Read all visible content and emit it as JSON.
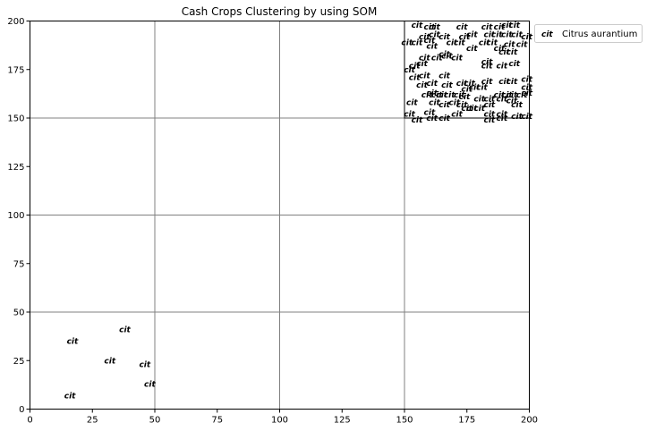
{
  "chart_data": {
    "type": "scatter",
    "title": "Cash Crops Clustering by using SOM",
    "xlabel": "",
    "ylabel": "",
    "xlim": [
      0,
      200
    ],
    "ylim": [
      0,
      200
    ],
    "xticks": [
      0,
      25,
      50,
      75,
      100,
      125,
      150,
      175,
      200
    ],
    "yticks": [
      0,
      25,
      50,
      75,
      100,
      125,
      150,
      175,
      200
    ],
    "grid": {
      "major_lines_every": 50,
      "color": "#808080"
    },
    "cluster_box": {
      "x": [
        150,
        200
      ],
      "y": [
        150,
        200
      ]
    },
    "legend": {
      "placement": "outside-top-right",
      "marker": "cit",
      "label": "Citrus aurantium"
    },
    "series": [
      {
        "name": "Citrus aurantium",
        "marker_text": "cit",
        "points": [
          [
            16,
            7
          ],
          [
            17,
            35
          ],
          [
            32,
            25
          ],
          [
            38,
            41
          ],
          [
            46,
            23
          ],
          [
            48,
            13
          ],
          [
            155,
            198
          ],
          [
            160,
            197
          ],
          [
            162,
            197
          ],
          [
            173,
            197
          ],
          [
            183,
            197
          ],
          [
            188,
            197
          ],
          [
            191,
            198
          ],
          [
            194,
            198
          ],
          [
            158,
            192
          ],
          [
            162,
            193
          ],
          [
            166,
            192
          ],
          [
            177,
            193
          ],
          [
            174,
            192
          ],
          [
            184,
            193
          ],
          [
            187,
            193
          ],
          [
            191,
            193
          ],
          [
            195,
            193
          ],
          [
            199,
            192
          ],
          [
            151,
            189
          ],
          [
            155,
            189
          ],
          [
            160,
            190
          ],
          [
            161,
            187
          ],
          [
            169,
            189
          ],
          [
            172,
            189
          ],
          [
            177,
            186
          ],
          [
            182,
            189
          ],
          [
            185,
            189
          ],
          [
            192,
            188
          ],
          [
            197,
            188
          ],
          [
            166,
            183
          ],
          [
            171,
            181
          ],
          [
            158,
            181
          ],
          [
            163,
            181
          ],
          [
            167,
            182
          ],
          [
            188,
            186
          ],
          [
            190,
            184
          ],
          [
            193,
            184
          ],
          [
            154,
            177
          ],
          [
            152,
            175
          ],
          [
            157,
            178
          ],
          [
            183,
            179
          ],
          [
            183,
            177
          ],
          [
            189,
            177
          ],
          [
            194,
            178
          ],
          [
            154,
            171
          ],
          [
            158,
            172
          ],
          [
            161,
            168
          ],
          [
            166,
            172
          ],
          [
            157,
            167
          ],
          [
            167,
            167
          ],
          [
            173,
            168
          ],
          [
            176,
            168
          ],
          [
            175,
            165
          ],
          [
            178,
            166
          ],
          [
            181,
            166
          ],
          [
            183,
            169
          ],
          [
            190,
            169
          ],
          [
            193,
            169
          ],
          [
            199,
            170
          ],
          [
            199,
            166
          ],
          [
            159,
            162
          ],
          [
            161,
            163
          ],
          [
            163,
            162
          ],
          [
            165,
            162
          ],
          [
            168,
            162
          ],
          [
            172,
            162
          ],
          [
            174,
            161
          ],
          [
            180,
            160
          ],
          [
            184,
            160
          ],
          [
            188,
            162
          ],
          [
            191,
            162
          ],
          [
            193,
            162
          ],
          [
            197,
            162
          ],
          [
            199,
            163
          ],
          [
            153,
            158
          ],
          [
            162,
            158
          ],
          [
            166,
            157
          ],
          [
            170,
            158
          ],
          [
            173,
            157
          ],
          [
            177,
            155
          ],
          [
            180,
            155
          ],
          [
            184,
            157
          ],
          [
            189,
            160
          ],
          [
            193,
            159
          ],
          [
            195,
            157
          ],
          [
            152,
            152
          ],
          [
            155,
            149
          ],
          [
            160,
            153
          ],
          [
            161,
            150
          ],
          [
            166,
            150
          ],
          [
            171,
            152
          ],
          [
            175,
            155
          ],
          [
            184,
            152
          ],
          [
            184,
            149
          ],
          [
            189,
            150
          ],
          [
            189,
            152
          ],
          [
            195,
            151
          ],
          [
            199,
            151
          ]
        ]
      }
    ]
  }
}
